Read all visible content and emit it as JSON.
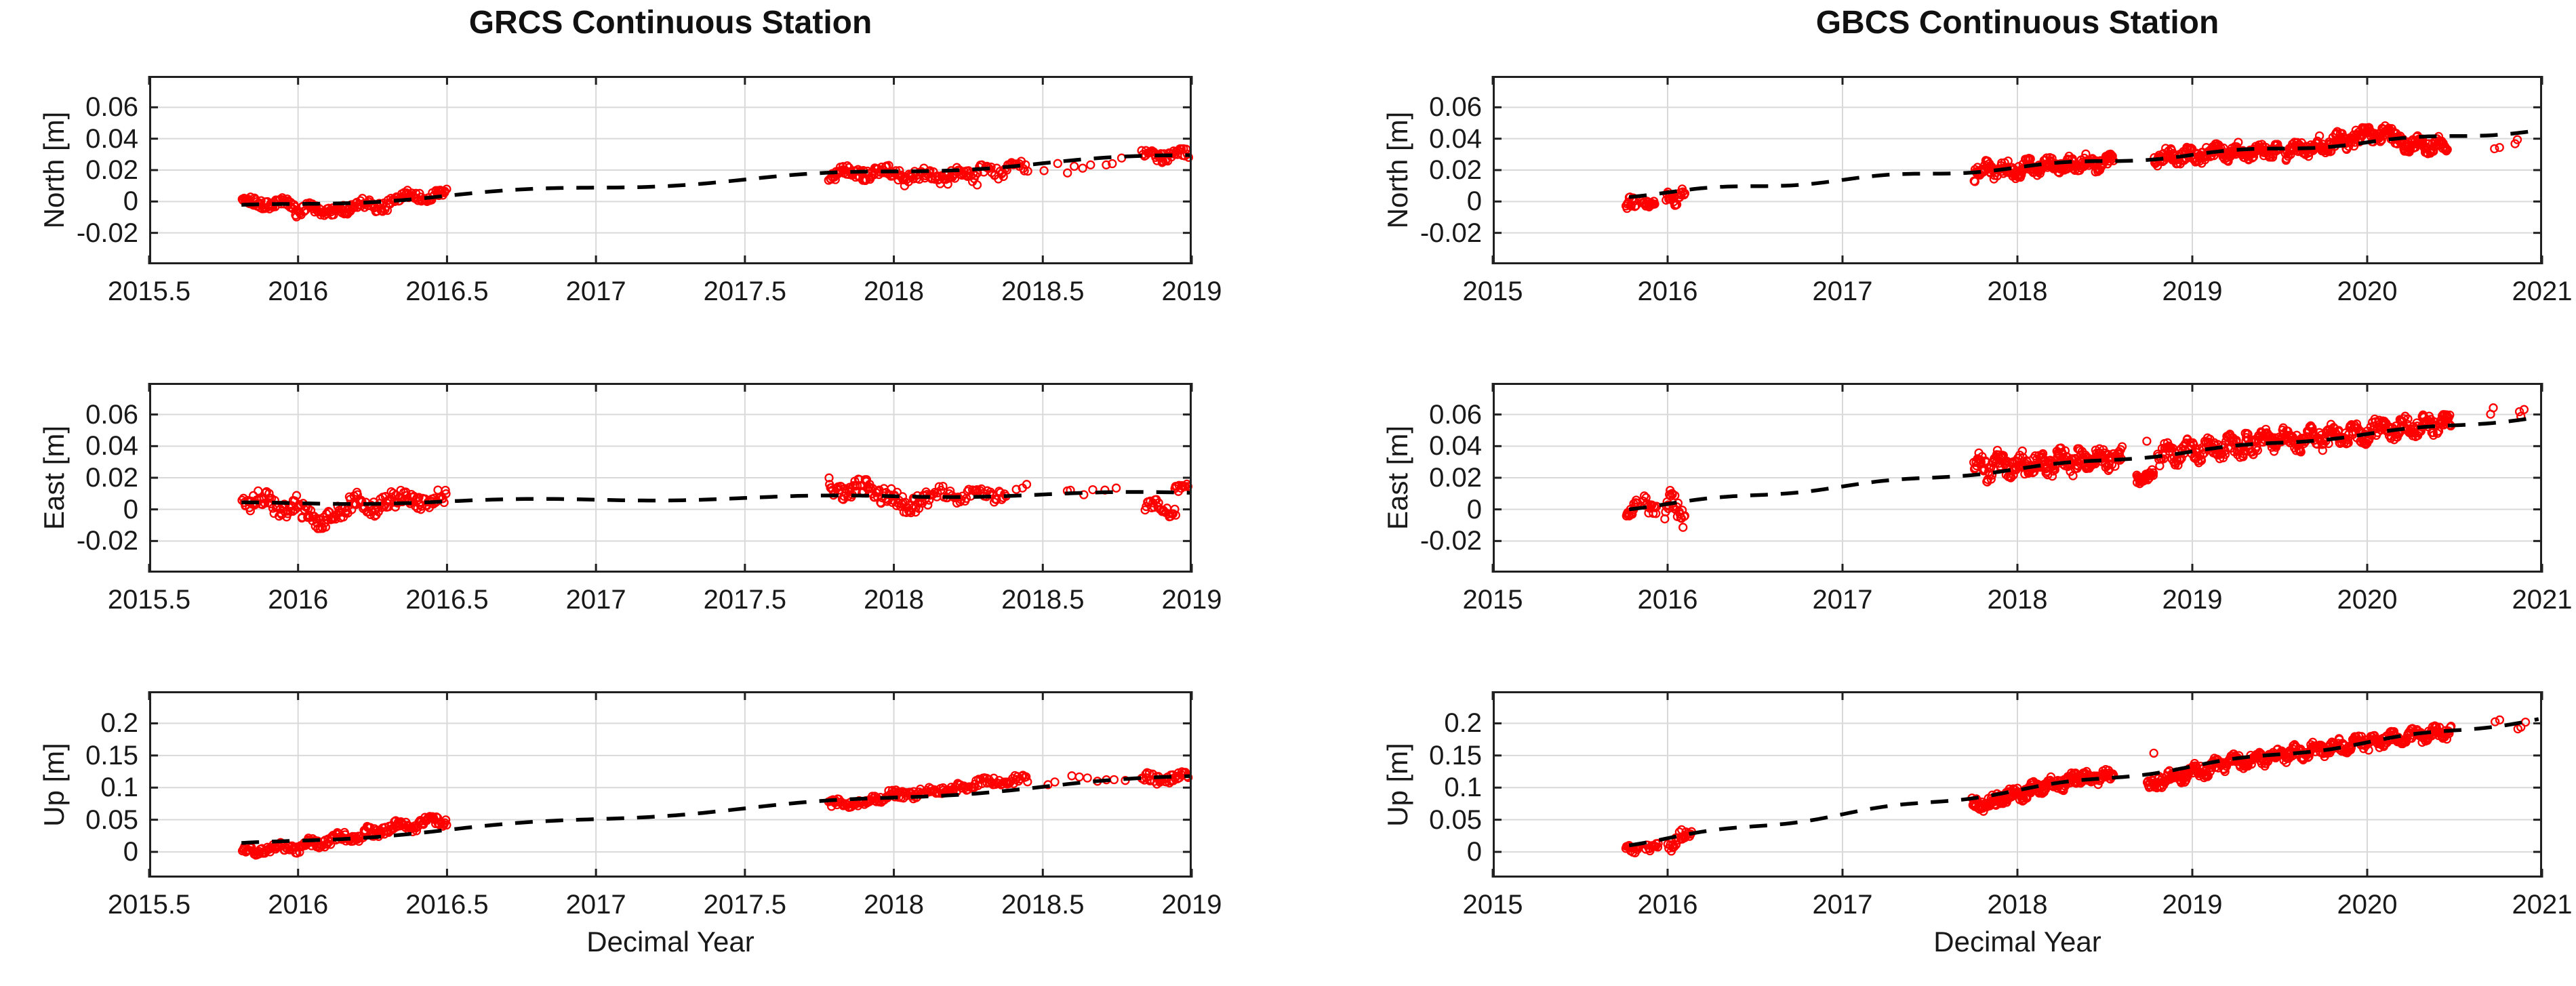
{
  "page": {
    "background": "#FFFFFF"
  },
  "styles": {
    "marker_color": "#FF0000",
    "trend_color": "#000000",
    "grid_color": "#D9D9D9",
    "frame_color": "#202020",
    "text_color": "#191919"
  },
  "cluster_format": [
    "x_start",
    "x_end",
    "n_points",
    "y_start",
    "y_end",
    "y_spread"
  ],
  "chart_data": [
    {
      "type": "scatter",
      "station": "GRCS",
      "title": "GRCS Continuous Station",
      "xlabel": "Decimal Year",
      "grid": true,
      "legend": "none",
      "marker": {
        "shape": "open-circle",
        "color": "#FF0000"
      },
      "trend_style": {
        "color": "#000000",
        "dash": true
      },
      "xlim": [
        2015.5,
        2019
      ],
      "xticks": [
        2015.5,
        2016,
        2016.5,
        2017,
        2017.5,
        2018,
        2018.5,
        2019
      ],
      "xtick_labels": [
        "2015.5",
        "2016",
        "2016.5",
        "2017",
        "2017.5",
        "2018",
        "2018.5",
        "2019"
      ],
      "panels": [
        {
          "component": "north",
          "ylabel": "North [m]",
          "ylim": [
            -0.04,
            0.08
          ],
          "yticks": [
            -0.02,
            0,
            0.02,
            0.04,
            0.06
          ],
          "ytick_labels": [
            "-0.02",
            "0",
            "0.02",
            "0.04",
            "0.06"
          ],
          "seed": 101,
          "trend": {
            "x": [
              2015.81,
              2019.0
            ],
            "y": [
              -0.0035,
              0.0295
            ],
            "annual_amp": 0.0015
          },
          "clusters": [
            [
              2015.81,
              2015.99,
              55,
              0.0,
              -0.002,
              0.0035
            ],
            [
              2015.99,
              2016.13,
              45,
              -0.006,
              -0.005,
              0.0035
            ],
            [
              2016.13,
              2016.3,
              50,
              -0.004,
              -0.002,
              0.004
            ],
            [
              2016.3,
              2016.5,
              55,
              0.002,
              0.005,
              0.003
            ],
            [
              2017.78,
              2018.02,
              70,
              0.018,
              0.019,
              0.004
            ],
            [
              2018.02,
              2018.28,
              70,
              0.016,
              0.016,
              0.0045
            ],
            [
              2018.28,
              2018.45,
              35,
              0.019,
              0.021,
              0.004
            ],
            [
              2018.5,
              2018.78,
              9,
              0.02,
              0.025,
              0.003
            ],
            [
              2018.83,
              2018.99,
              40,
              0.029,
              0.03,
              0.0035
            ]
          ]
        },
        {
          "component": "east",
          "ylabel": "East [m]",
          "ylim": [
            -0.04,
            0.08
          ],
          "yticks": [
            -0.02,
            0,
            0.02,
            0.04,
            0.06
          ],
          "ytick_labels": [
            "-0.02",
            "0",
            "0.02",
            "0.04",
            "0.06"
          ],
          "seed": 102,
          "trend": {
            "x": [
              2015.81,
              2019.0
            ],
            "y": [
              0.0035,
              0.0105
            ],
            "annual_amp": 0.001
          },
          "clusters": [
            [
              2015.81,
              2016.0,
              55,
              0.006,
              0.001,
              0.006
            ],
            [
              2016.0,
              2016.13,
              40,
              -0.004,
              -0.005,
              0.006
            ],
            [
              2016.13,
              2016.32,
              55,
              0.002,
              0.004,
              0.006
            ],
            [
              2016.32,
              2016.5,
              50,
              0.006,
              0.006,
              0.005
            ],
            [
              2017.78,
              2017.97,
              55,
              0.014,
              0.011,
              0.006
            ],
            [
              2017.97,
              2018.12,
              45,
              0.005,
              0.004,
              0.006
            ],
            [
              2018.12,
              2018.38,
              50,
              0.009,
              0.01,
              0.004
            ],
            [
              2018.4,
              2018.45,
              3,
              0.014,
              0.015,
              0.002
            ],
            [
              2018.55,
              2018.78,
              6,
              0.011,
              0.013,
              0.003
            ],
            [
              2018.84,
              2018.95,
              25,
              0.002,
              0.0,
              0.004
            ],
            [
              2018.94,
              2018.99,
              12,
              0.013,
              0.017,
              0.004
            ]
          ]
        },
        {
          "component": "up",
          "ylabel": "Up [m]",
          "ylim": [
            -0.04,
            0.25
          ],
          "yticks": [
            0,
            0.05,
            0.1,
            0.15,
            0.2
          ],
          "ytick_labels": [
            "0",
            "0.05",
            "0.1",
            "0.15",
            "0.2"
          ],
          "seed": 103,
          "trend": {
            "x": [
              2015.81,
              2019.0
            ],
            "y": [
              0.011,
              0.118
            ],
            "annual_amp": 0.003
          },
          "clusters": [
            [
              2015.81,
              2016.02,
              60,
              0.002,
              0.008,
              0.007
            ],
            [
              2016.02,
              2016.22,
              60,
              0.012,
              0.026,
              0.008
            ],
            [
              2016.22,
              2016.4,
              55,
              0.03,
              0.043,
              0.008
            ],
            [
              2016.4,
              2016.5,
              30,
              0.045,
              0.049,
              0.007
            ],
            [
              2017.78,
              2017.97,
              55,
              0.073,
              0.081,
              0.006
            ],
            [
              2017.97,
              2018.22,
              65,
              0.086,
              0.1,
              0.007
            ],
            [
              2018.22,
              2018.45,
              50,
              0.104,
              0.113,
              0.007
            ],
            [
              2018.5,
              2018.8,
              9,
              0.108,
              0.116,
              0.006
            ],
            [
              2018.83,
              2018.99,
              40,
              0.112,
              0.117,
              0.008
            ]
          ]
        }
      ]
    },
    {
      "type": "scatter",
      "station": "GBCS",
      "title": "GBCS Continuous Station",
      "xlabel": "Decimal Year",
      "grid": true,
      "legend": "none",
      "marker": {
        "shape": "open-circle",
        "color": "#FF0000"
      },
      "trend_style": {
        "color": "#000000",
        "dash": true
      },
      "xlim": [
        2015,
        2021
      ],
      "xticks": [
        2015,
        2016,
        2017,
        2018,
        2019,
        2020,
        2021
      ],
      "xtick_labels": [
        "2015",
        "2016",
        "2017",
        "2018",
        "2019",
        "2020",
        "2021"
      ],
      "panels": [
        {
          "component": "north",
          "ylabel": "North [m]",
          "ylim": [
            -0.04,
            0.08
          ],
          "yticks": [
            -0.02,
            0,
            0.02,
            0.04,
            0.06
          ],
          "ytick_labels": [
            "-0.02",
            "0",
            "0.02",
            "0.04",
            "0.06"
          ],
          "seed": 201,
          "trend": {
            "x": [
              2015.78,
              2020.98
            ],
            "y": [
              0.004,
              0.0455
            ],
            "annual_amp": 0.0012
          },
          "clusters": [
            [
              2015.76,
              2015.82,
              14,
              -0.002,
              -0.002,
              0.004
            ],
            [
              2015.85,
              2015.93,
              16,
              -0.001,
              0.0,
              0.0035
            ],
            [
              2015.99,
              2016.1,
              22,
              0.002,
              0.004,
              0.004
            ],
            [
              2017.75,
              2018.05,
              80,
              0.019,
              0.021,
              0.005
            ],
            [
              2018.05,
              2018.32,
              75,
              0.022,
              0.023,
              0.0045
            ],
            [
              2018.32,
              2018.55,
              65,
              0.024,
              0.025,
              0.0045
            ],
            [
              2018.78,
              2019.1,
              85,
              0.028,
              0.03,
              0.0045
            ],
            [
              2019.1,
              2019.5,
              105,
              0.031,
              0.033,
              0.0045
            ],
            [
              2019.53,
              2019.95,
              110,
              0.032,
              0.04,
              0.005
            ],
            [
              2019.95,
              2020.18,
              65,
              0.042,
              0.043,
              0.0045
            ],
            [
              2020.18,
              2020.46,
              75,
              0.037,
              0.035,
              0.0045
            ],
            [
              2020.72,
              2020.76,
              2,
              0.033,
              0.034,
              0.002
            ],
            [
              2020.84,
              2020.87,
              2,
              0.036,
              0.04,
              0.002
            ]
          ]
        },
        {
          "component": "east",
          "ylabel": "East [m]",
          "ylim": [
            -0.04,
            0.08
          ],
          "yticks": [
            -0.02,
            0,
            0.02,
            0.04,
            0.06
          ],
          "ytick_labels": [
            "-0.02",
            "0",
            "0.02",
            "0.04",
            "0.06"
          ],
          "seed": 202,
          "trend": {
            "x": [
              2015.78,
              2020.98
            ],
            "y": [
              0.001,
              0.0585
            ],
            "annual_amp": 0.001
          },
          "clusters": [
            [
              2015.76,
              2015.83,
              14,
              0.001,
              0.0,
              0.005
            ],
            [
              2015.86,
              2015.94,
              16,
              0.002,
              0.001,
              0.005
            ],
            [
              2015.98,
              2016.1,
              26,
              0.0,
              0.002,
              0.01
            ],
            [
              2017.75,
              2018.05,
              80,
              0.027,
              0.028,
              0.0075
            ],
            [
              2018.05,
              2018.35,
              80,
              0.028,
              0.031,
              0.0075
            ],
            [
              2018.35,
              2018.6,
              70,
              0.031,
              0.033,
              0.006
            ],
            [
              2018.68,
              2018.78,
              30,
              0.02,
              0.021,
              0.003
            ],
            [
              2018.73,
              2018.75,
              1,
              0.043,
              0.043,
              0.001
            ],
            [
              2018.8,
              2019.3,
              120,
              0.034,
              0.041,
              0.006
            ],
            [
              2019.3,
              2019.6,
              80,
              0.042,
              0.045,
              0.006
            ],
            [
              2019.6,
              2020.05,
              115,
              0.044,
              0.049,
              0.006
            ],
            [
              2020.05,
              2020.48,
              110,
              0.05,
              0.055,
              0.0055
            ],
            [
              2020.7,
              2020.73,
              2,
              0.062,
              0.066,
              0.003
            ],
            [
              2020.86,
              2020.9,
              3,
              0.06,
              0.064,
              0.003
            ]
          ]
        },
        {
          "component": "up",
          "ylabel": "Up [m]",
          "ylim": [
            -0.04,
            0.25
          ],
          "yticks": [
            0,
            0.05,
            0.1,
            0.15,
            0.2
          ],
          "ytick_labels": [
            "0",
            "0.05",
            "0.1",
            "0.15",
            "0.2"
          ],
          "seed": 203,
          "trend": {
            "x": [
              2015.78,
              2020.98
            ],
            "y": [
              0.013,
              0.207
            ],
            "annual_amp": 0.003
          },
          "clusters": [
            [
              2015.76,
              2015.84,
              16,
              0.004,
              0.006,
              0.006
            ],
            [
              2015.87,
              2015.95,
              14,
              0.007,
              0.009,
              0.006
            ],
            [
              2016.0,
              2016.14,
              24,
              0.012,
              0.03,
              0.01
            ],
            [
              2017.74,
              2017.88,
              45,
              0.075,
              0.076,
              0.009
            ],
            [
              2017.88,
              2018.1,
              65,
              0.083,
              0.097,
              0.01
            ],
            [
              2018.1,
              2018.35,
              75,
              0.1,
              0.113,
              0.01
            ],
            [
              2018.35,
              2018.55,
              60,
              0.113,
              0.119,
              0.009
            ],
            [
              2018.74,
              2018.8,
              14,
              0.1,
              0.108,
              0.007
            ],
            [
              2018.77,
              2018.79,
              1,
              0.153,
              0.153,
              0.001
            ],
            [
              2018.8,
              2019.12,
              85,
              0.112,
              0.131,
              0.01
            ],
            [
              2019.12,
              2019.55,
              115,
              0.134,
              0.152,
              0.01
            ],
            [
              2019.55,
              2020.02,
              120,
              0.152,
              0.172,
              0.01
            ],
            [
              2020.02,
              2020.48,
              115,
              0.172,
              0.188,
              0.009
            ],
            [
              2020.72,
              2020.76,
              2,
              0.205,
              0.208,
              0.003
            ],
            [
              2020.85,
              2020.91,
              3,
              0.195,
              0.2,
              0.004
            ]
          ]
        }
      ]
    }
  ]
}
